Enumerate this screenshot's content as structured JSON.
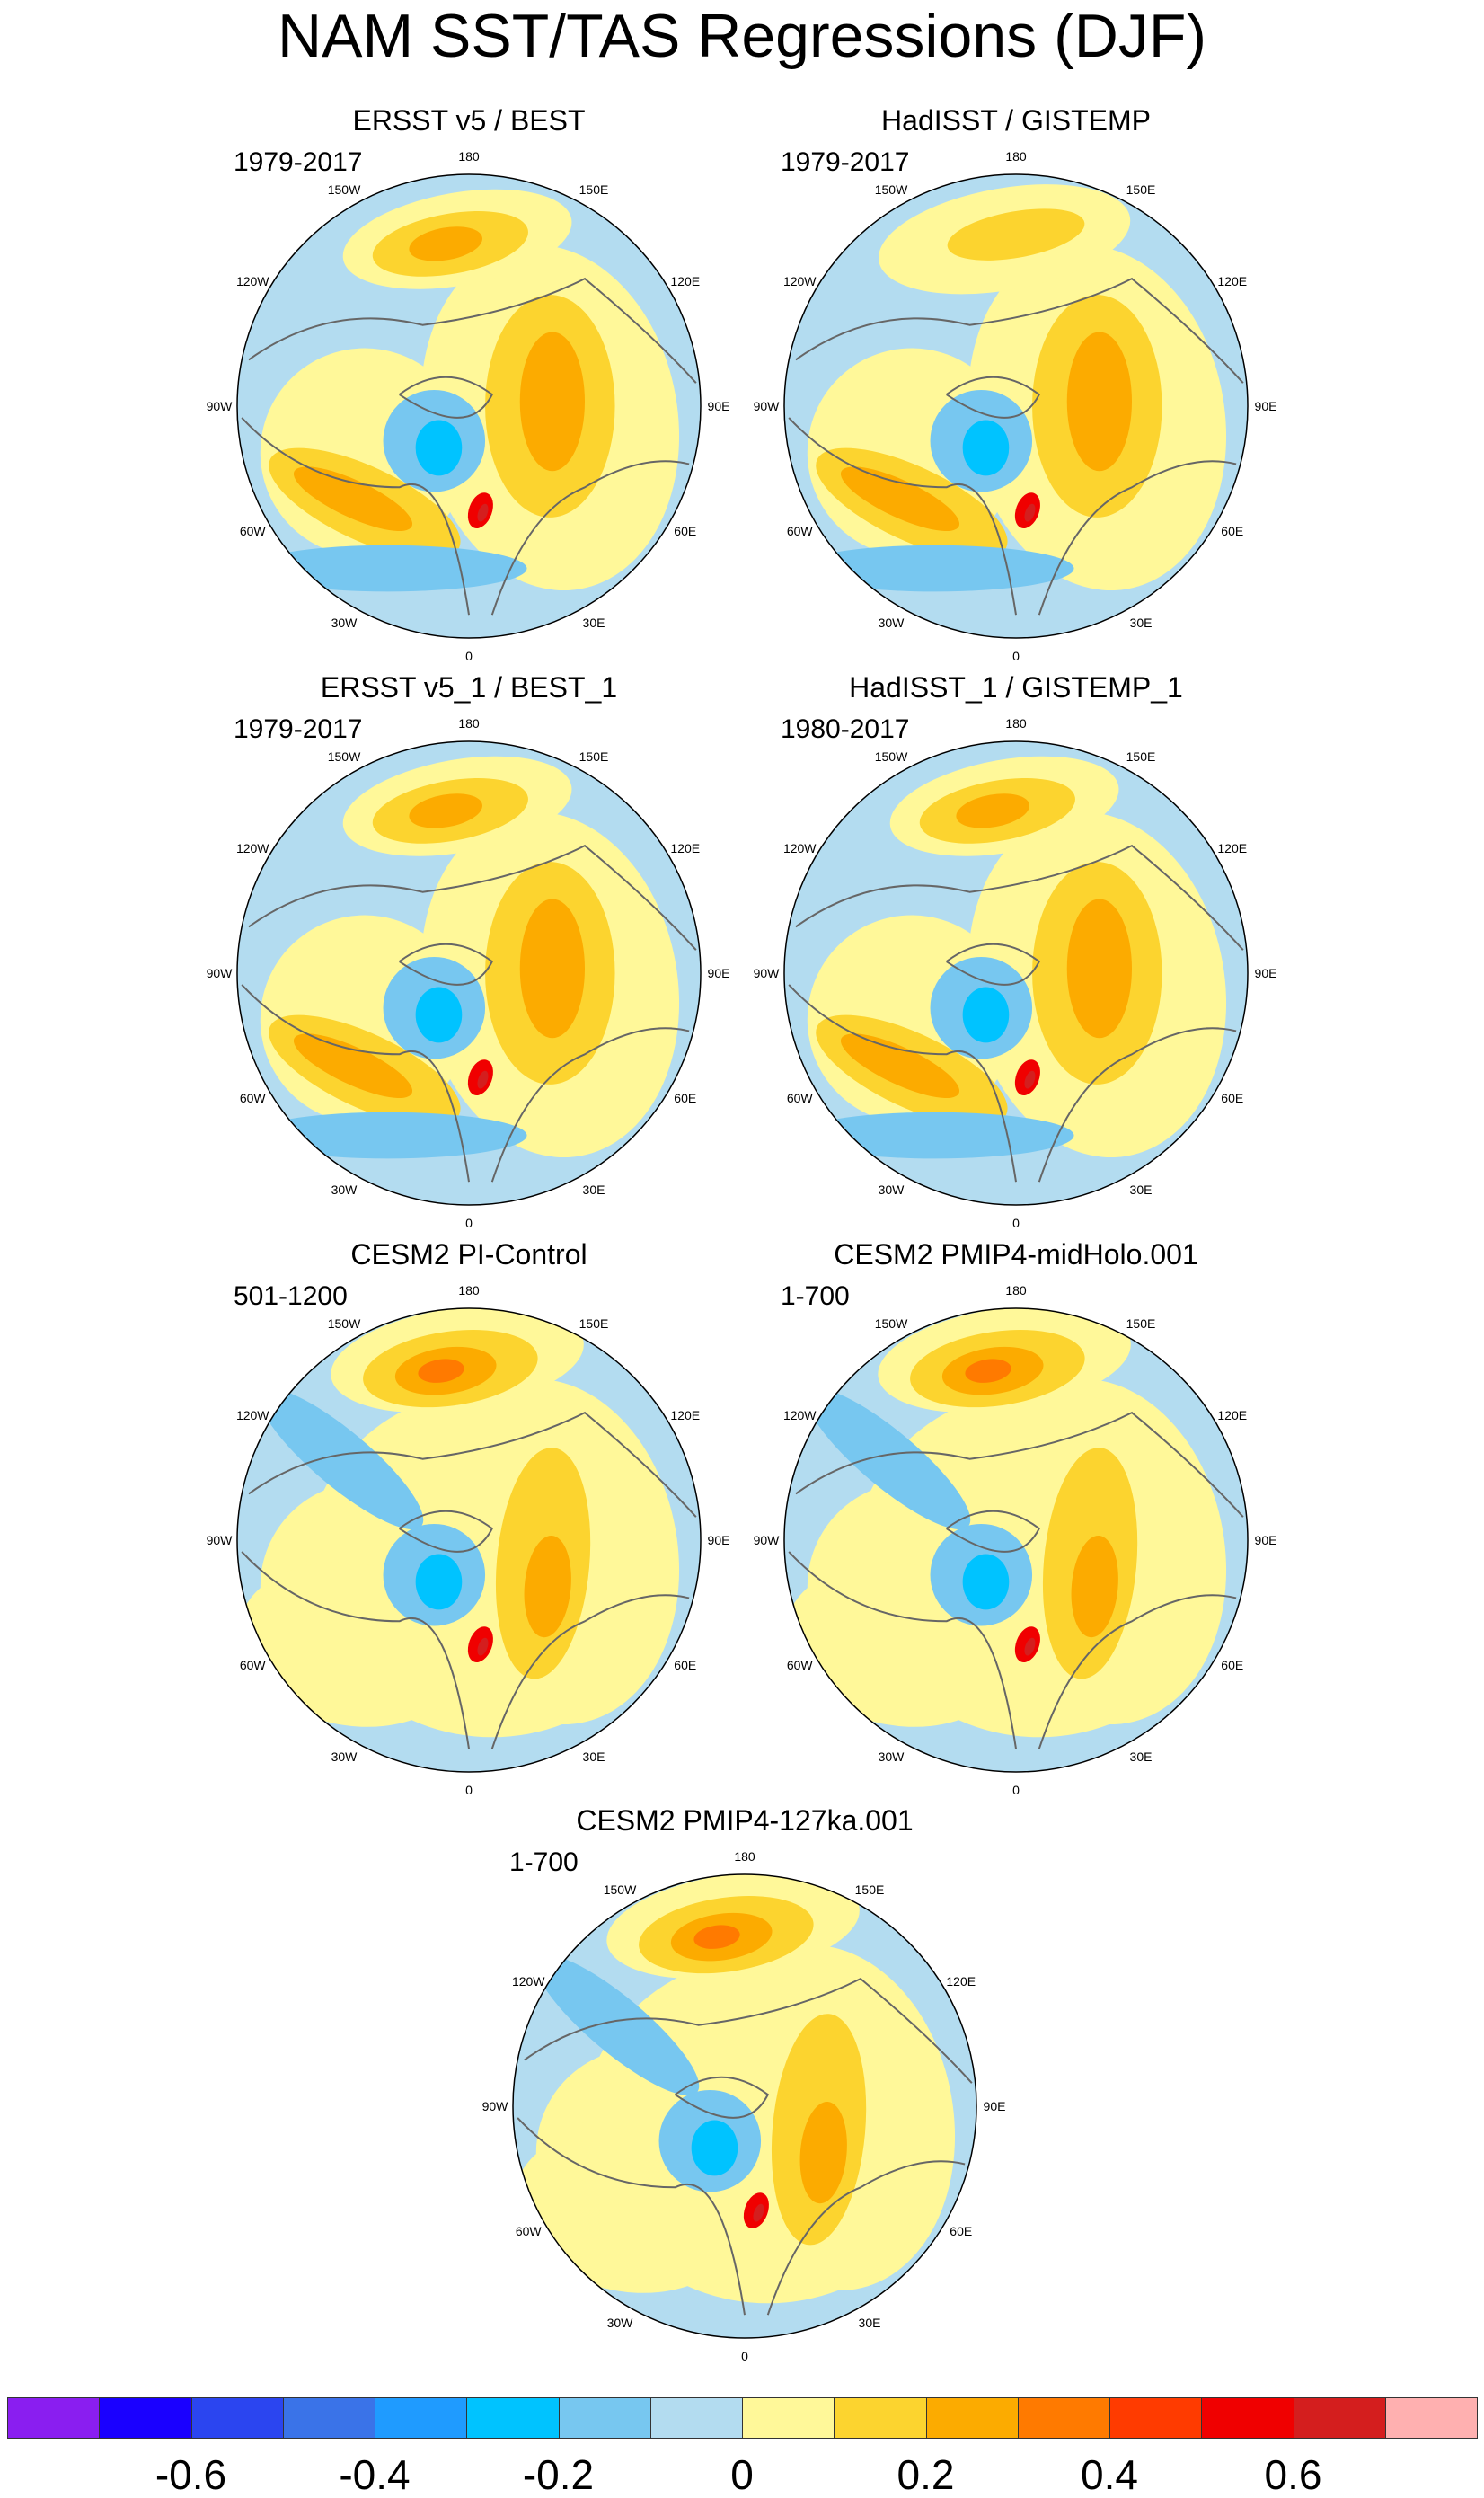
{
  "title": "NAM SST/TAS Regressions (DJF)",
  "longitude_labels": [
    "180",
    "150E",
    "120E",
    "90E",
    "60E",
    "30E",
    "0",
    "30W",
    "60W",
    "90W",
    "120W",
    "150W"
  ],
  "panels": [
    {
      "title": "ERSST v5 / BEST",
      "period": "1979-2017",
      "pacific": "orange",
      "atlantic": "orange",
      "arctic": "blue",
      "strength": "obs"
    },
    {
      "title": "HadISST / GISTEMP",
      "period": "1979-2017",
      "pacific": "yellow",
      "atlantic": "orange",
      "arctic": "blue",
      "strength": "obs"
    },
    {
      "title": "ERSST v5_1 / BEST_1",
      "period": "1979-2017",
      "pacific": "orange",
      "atlantic": "orange",
      "arctic": "blue",
      "strength": "obs"
    },
    {
      "title": "HadISST_1 / GISTEMP_1",
      "period": "1980-2017",
      "pacific": "orange",
      "atlantic": "orange",
      "arctic": "blue",
      "strength": "obs"
    },
    {
      "title": "CESM2 PI-Control",
      "period": "501-1200",
      "pacific": "strong",
      "atlantic": "yellow",
      "arctic": "blue",
      "strength": "model"
    },
    {
      "title": "CESM2 PMIP4-midHolo.001",
      "period": "1-700",
      "pacific": "strong",
      "atlantic": "yellow",
      "arctic": "blue",
      "strength": "model"
    },
    {
      "title": "CESM2 PMIP4-127ka.001",
      "period": "1-700",
      "pacific": "strong",
      "atlantic": "yellow",
      "arctic": "blue",
      "strength": "model"
    }
  ],
  "colorbar": {
    "colors": [
      "#8a1ef0",
      "#1a00ff",
      "#2b45f0",
      "#3a73e8",
      "#1f9bff",
      "#00c3ff",
      "#77c7f0",
      "#b3dcf0",
      "#fff899",
      "#fcd42f",
      "#fcab00",
      "#ff7a00",
      "#ff3b00",
      "#f00000",
      "#d41e1e",
      "#ffb0b0"
    ],
    "labels": [
      "-0.6",
      "-0.4",
      "-0.2",
      "0",
      "0.2",
      "0.4",
      "0.6"
    ]
  }
}
